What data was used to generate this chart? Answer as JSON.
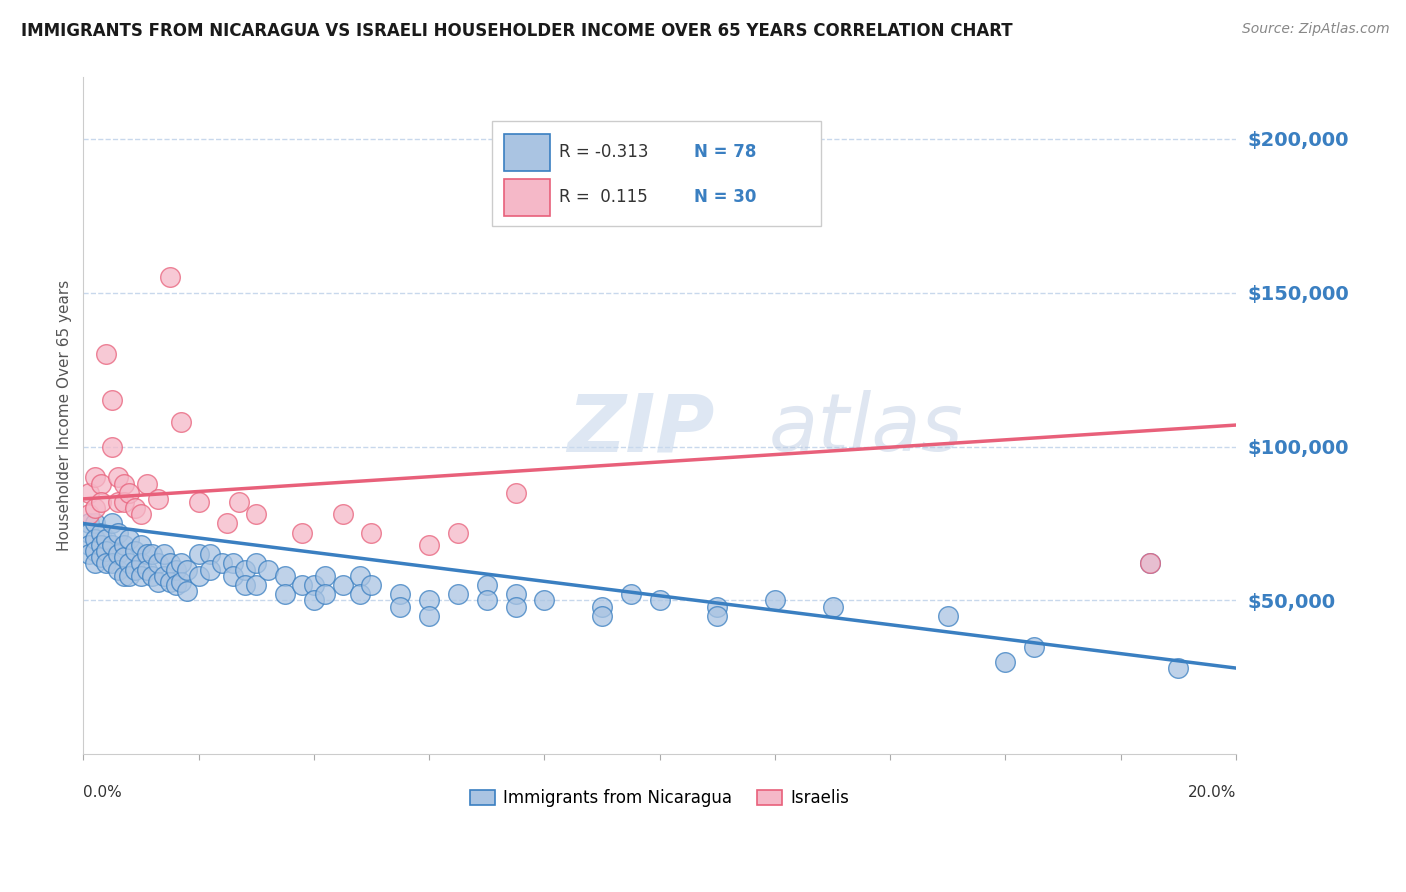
{
  "title": "IMMIGRANTS FROM NICARAGUA VS ISRAELI HOUSEHOLDER INCOME OVER 65 YEARS CORRELATION CHART",
  "source": "Source: ZipAtlas.com",
  "ylabel": "Householder Income Over 65 years",
  "xlim": [
    0.0,
    0.2
  ],
  "ylim": [
    0,
    220000
  ],
  "yticks": [
    50000,
    100000,
    150000,
    200000
  ],
  "ytick_labels": [
    "$50,000",
    "$100,000",
    "$150,000",
    "$200,000"
  ],
  "watermark_zip": "ZIP",
  "watermark_atlas": "atlas",
  "color_blue": "#aac4e2",
  "color_pink": "#f5b8c8",
  "line_blue": "#3a7fc1",
  "line_pink": "#e8607a",
  "background_color": "#ffffff",
  "grid_color": "#c8d8ec",
  "blue_scatter": [
    [
      0.001,
      75000
    ],
    [
      0.001,
      72000
    ],
    [
      0.001,
      68000
    ],
    [
      0.001,
      65000
    ],
    [
      0.002,
      75000
    ],
    [
      0.002,
      70000
    ],
    [
      0.002,
      66000
    ],
    [
      0.002,
      62000
    ],
    [
      0.003,
      72000
    ],
    [
      0.003,
      68000
    ],
    [
      0.003,
      64000
    ],
    [
      0.004,
      70000
    ],
    [
      0.004,
      66000
    ],
    [
      0.004,
      62000
    ],
    [
      0.005,
      75000
    ],
    [
      0.005,
      68000
    ],
    [
      0.005,
      62000
    ],
    [
      0.006,
      72000
    ],
    [
      0.006,
      65000
    ],
    [
      0.006,
      60000
    ],
    [
      0.007,
      68000
    ],
    [
      0.007,
      64000
    ],
    [
      0.007,
      58000
    ],
    [
      0.008,
      70000
    ],
    [
      0.008,
      62000
    ],
    [
      0.008,
      58000
    ],
    [
      0.009,
      66000
    ],
    [
      0.009,
      60000
    ],
    [
      0.01,
      68000
    ],
    [
      0.01,
      62000
    ],
    [
      0.01,
      58000
    ],
    [
      0.011,
      65000
    ],
    [
      0.011,
      60000
    ],
    [
      0.012,
      65000
    ],
    [
      0.012,
      58000
    ],
    [
      0.013,
      62000
    ],
    [
      0.013,
      56000
    ],
    [
      0.014,
      65000
    ],
    [
      0.014,
      58000
    ],
    [
      0.015,
      62000
    ],
    [
      0.015,
      56000
    ],
    [
      0.016,
      60000
    ],
    [
      0.016,
      55000
    ],
    [
      0.017,
      62000
    ],
    [
      0.017,
      56000
    ],
    [
      0.018,
      60000
    ],
    [
      0.018,
      53000
    ],
    [
      0.02,
      65000
    ],
    [
      0.02,
      58000
    ],
    [
      0.022,
      65000
    ],
    [
      0.022,
      60000
    ],
    [
      0.024,
      62000
    ],
    [
      0.026,
      62000
    ],
    [
      0.026,
      58000
    ],
    [
      0.028,
      60000
    ],
    [
      0.028,
      55000
    ],
    [
      0.03,
      62000
    ],
    [
      0.03,
      55000
    ],
    [
      0.032,
      60000
    ],
    [
      0.035,
      58000
    ],
    [
      0.035,
      52000
    ],
    [
      0.038,
      55000
    ],
    [
      0.04,
      55000
    ],
    [
      0.04,
      50000
    ],
    [
      0.042,
      58000
    ],
    [
      0.042,
      52000
    ],
    [
      0.045,
      55000
    ],
    [
      0.048,
      58000
    ],
    [
      0.048,
      52000
    ],
    [
      0.05,
      55000
    ],
    [
      0.055,
      52000
    ],
    [
      0.055,
      48000
    ],
    [
      0.06,
      50000
    ],
    [
      0.06,
      45000
    ],
    [
      0.065,
      52000
    ],
    [
      0.07,
      55000
    ],
    [
      0.07,
      50000
    ],
    [
      0.075,
      52000
    ],
    [
      0.075,
      48000
    ],
    [
      0.08,
      50000
    ],
    [
      0.09,
      48000
    ],
    [
      0.09,
      45000
    ],
    [
      0.095,
      52000
    ],
    [
      0.1,
      50000
    ],
    [
      0.11,
      48000
    ],
    [
      0.11,
      45000
    ],
    [
      0.12,
      50000
    ],
    [
      0.13,
      48000
    ],
    [
      0.15,
      45000
    ],
    [
      0.16,
      30000
    ],
    [
      0.165,
      35000
    ],
    [
      0.185,
      62000
    ],
    [
      0.19,
      28000
    ]
  ],
  "pink_scatter": [
    [
      0.001,
      85000
    ],
    [
      0.001,
      78000
    ],
    [
      0.002,
      90000
    ],
    [
      0.002,
      80000
    ],
    [
      0.003,
      88000
    ],
    [
      0.003,
      82000
    ],
    [
      0.004,
      130000
    ],
    [
      0.005,
      115000
    ],
    [
      0.005,
      100000
    ],
    [
      0.006,
      90000
    ],
    [
      0.006,
      82000
    ],
    [
      0.007,
      88000
    ],
    [
      0.007,
      82000
    ],
    [
      0.008,
      85000
    ],
    [
      0.009,
      80000
    ],
    [
      0.01,
      78000
    ],
    [
      0.011,
      88000
    ],
    [
      0.013,
      83000
    ],
    [
      0.015,
      155000
    ],
    [
      0.017,
      108000
    ],
    [
      0.02,
      82000
    ],
    [
      0.025,
      75000
    ],
    [
      0.027,
      82000
    ],
    [
      0.03,
      78000
    ],
    [
      0.038,
      72000
    ],
    [
      0.045,
      78000
    ],
    [
      0.05,
      72000
    ],
    [
      0.06,
      68000
    ],
    [
      0.065,
      72000
    ],
    [
      0.075,
      85000
    ],
    [
      0.185,
      62000
    ]
  ],
  "blue_line_x": [
    0.0,
    0.2
  ],
  "blue_line_y": [
    75000,
    28000
  ],
  "pink_line_x": [
    0.0,
    0.2
  ],
  "pink_line_y": [
    83000,
    107000
  ]
}
